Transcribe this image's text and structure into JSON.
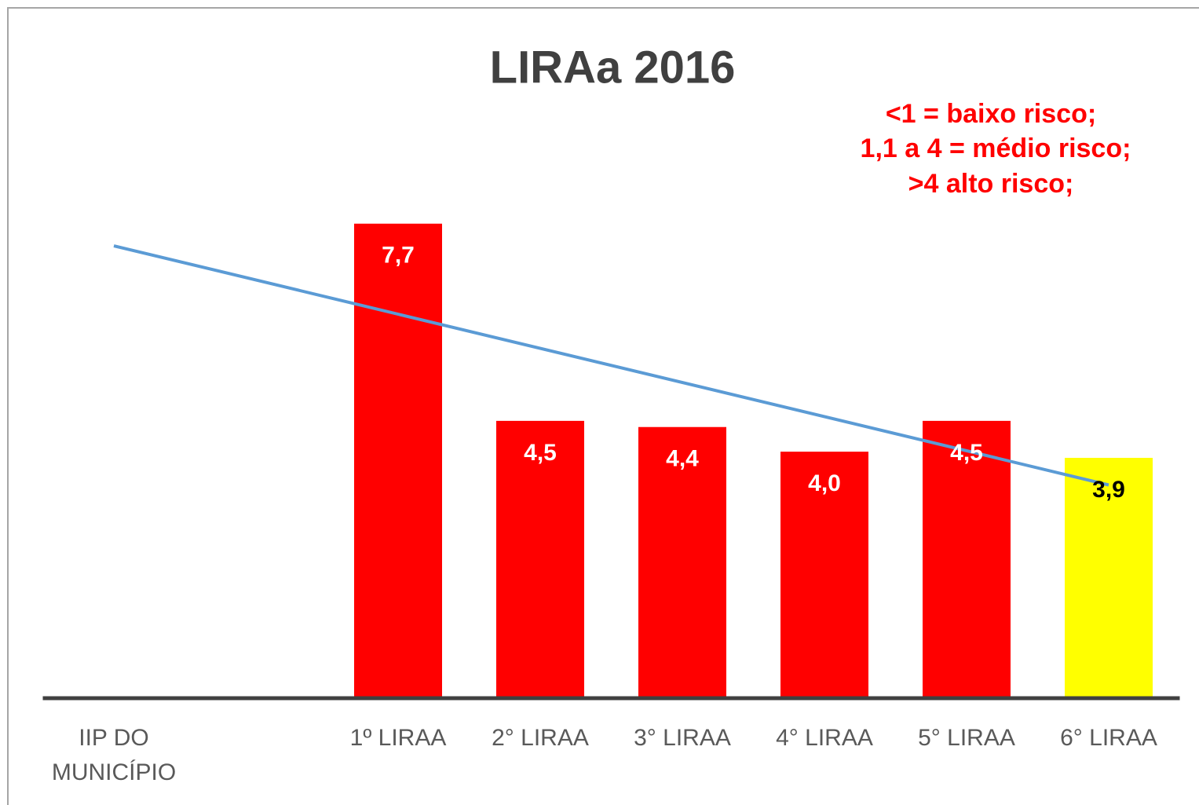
{
  "chart_data": {
    "type": "bar",
    "title": "LIRAa 2016",
    "annotations": [
      "<1 = baixo risco;",
      "1,1 a 4 = médio risco;",
      ">4 alto risco;"
    ],
    "annotation_color": "#ff0000",
    "categories": [
      "IIP DO MUNICÍPIO",
      null,
      "1º LIRAA",
      "2° LIRAA",
      "3° LIRAA",
      "4° LIRAA",
      "5° LIRAA",
      "6° LIRAA"
    ],
    "values": [
      null,
      null,
      7.7,
      4.5,
      4.4,
      4.0,
      4.5,
      3.9
    ],
    "value_labels": [
      null,
      null,
      "7,7",
      "4,5",
      "4,4",
      "4,0",
      "4,5",
      "3,9"
    ],
    "colors": [
      null,
      null,
      "#ff0000",
      "#ff0000",
      "#ff0000",
      "#ff0000",
      "#ff0000",
      "#ffff00"
    ],
    "label_colors": [
      null,
      null,
      "#ffffff",
      "#ffffff",
      "#ffffff",
      "#ffffff",
      "#ffffff",
      "#000000"
    ],
    "trendline": {
      "color": "#5b9bd5",
      "start": 7.34,
      "end": 3.46
    },
    "ylim": [
      0,
      9.8
    ]
  }
}
